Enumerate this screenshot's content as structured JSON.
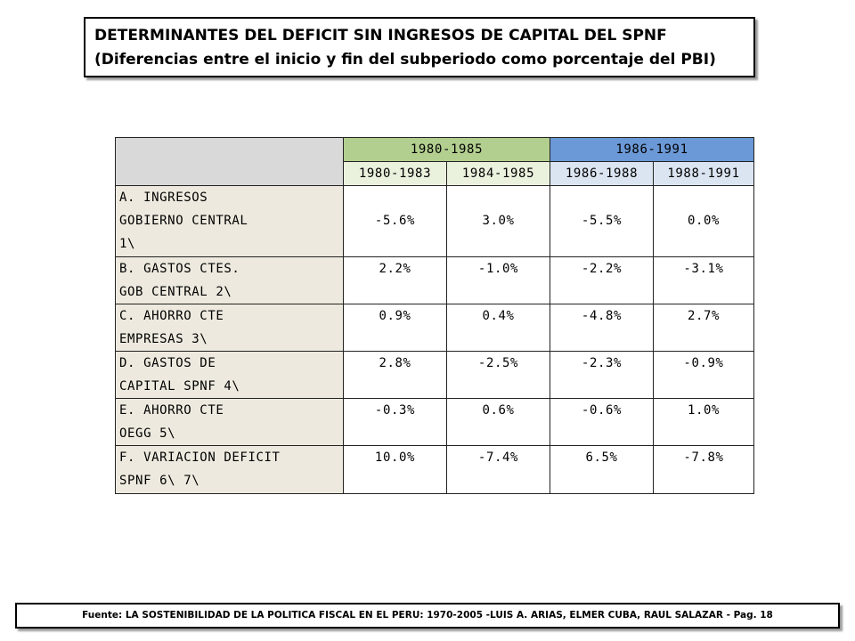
{
  "title": {
    "line1": "DETERMINANTES DEL DEFICIT SIN INGRESOS DE CAPITAL DEL SPNF",
    "line2": "(Diferencias entre el inicio y fin del subperiodo como porcentaje del PBI)"
  },
  "table": {
    "periods": [
      "1980-1985",
      "1986-1991"
    ],
    "subperiods": [
      "1980-1983",
      "1984-1985",
      "1986-1988",
      "1988-1991"
    ],
    "rows": [
      {
        "label": "A. INGRESOS\nGOBIERNO CENTRAL\n1\\",
        "values": [
          "-5.6%",
          "3.0%",
          "-5.5%",
          "0.0%"
        ]
      },
      {
        "label": "B. GASTOS CTES.\nGOB CENTRAL 2\\",
        "values": [
          "2.2%",
          "-1.0%",
          "-2.2%",
          "-3.1%"
        ]
      },
      {
        "label": "C. AHORRO CTE\nEMPRESAS 3\\",
        "values": [
          "0.9%",
          "0.4%",
          "-4.8%",
          "2.7%"
        ]
      },
      {
        "label": "D. GASTOS DE\nCAPITAL SPNF 4\\",
        "values": [
          "2.8%",
          "-2.5%",
          "-2.3%",
          "-0.9%"
        ]
      },
      {
        "label": "E. AHORRO CTE\nOEGG 5\\",
        "values": [
          "-0.3%",
          "0.6%",
          "-0.6%",
          "1.0%"
        ]
      },
      {
        "label": "F. VARIACION DEFICIT\nSPNF 6\\ 7\\",
        "values": [
          "10.0%",
          "-7.4%",
          "6.5%",
          "-7.8%"
        ]
      }
    ]
  },
  "source": {
    "label": "Fuente:",
    "text": " LA SOSTENIBILIDAD DE LA POLITICA FISCAL EN EL PERU: 1970-2005 -LUIS A. ARIAS, ELMER CUBA, RAUL SALAZAR - Pag. 18"
  },
  "colors": {
    "period1": "#b3cf90",
    "period2": "#6b98d6",
    "sub1": "#eaf1dd",
    "sub2": "#dbe5f1",
    "label_bg": "#ede9de",
    "corner": "#d9d9d9"
  }
}
